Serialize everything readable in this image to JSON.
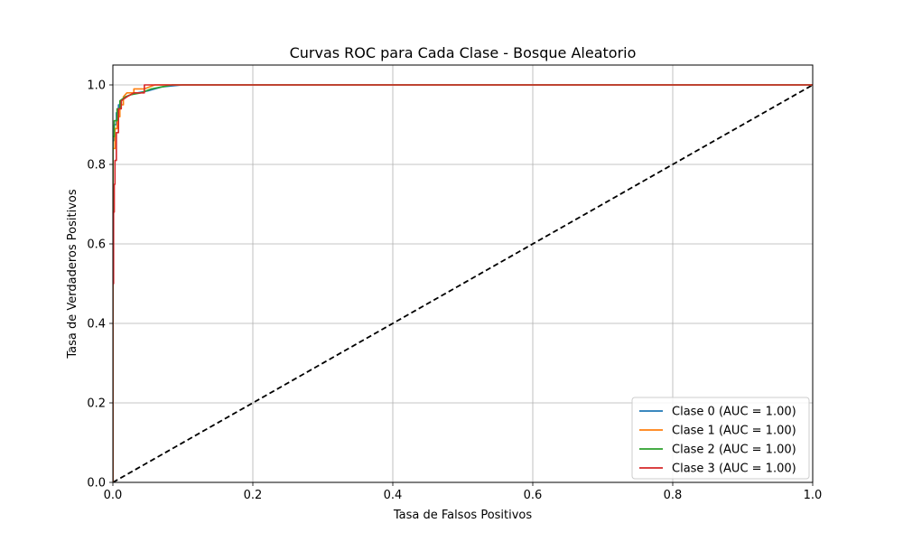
{
  "chart_data": {
    "type": "line",
    "title": "Curvas ROC para Cada Clase - Bosque Aleatorio",
    "xlabel": "Tasa de Falsos Positivos",
    "ylabel": "Tasa de Verdaderos Positivos",
    "xlim": [
      0.0,
      1.0
    ],
    "ylim": [
      0.0,
      1.05
    ],
    "xticks": [
      0.0,
      0.2,
      0.4,
      0.6,
      0.8,
      1.0
    ],
    "yticks": [
      0.0,
      0.2,
      0.4,
      0.6,
      0.8,
      1.0
    ],
    "xtick_labels": [
      "0.0",
      "0.2",
      "0.4",
      "0.6",
      "0.8",
      "1.0"
    ],
    "ytick_labels": [
      "0.0",
      "0.2",
      "0.4",
      "0.6",
      "0.8",
      "1.0"
    ],
    "grid": true,
    "legend_position": "lower-right",
    "series": [
      {
        "name": "Clase 0 (AUC = 1.00)",
        "color": "#1f77b4",
        "x": [
          0.0,
          0.0,
          0.002,
          0.002,
          0.005,
          0.005,
          0.008,
          0.008,
          0.012,
          0.012,
          0.018,
          0.025,
          0.035,
          0.05,
          0.07,
          0.1,
          0.2,
          1.0
        ],
        "y": [
          0.0,
          0.86,
          0.86,
          0.9,
          0.9,
          0.93,
          0.93,
          0.95,
          0.95,
          0.96,
          0.97,
          0.975,
          0.98,
          0.985,
          0.995,
          1.0,
          1.0,
          1.0
        ]
      },
      {
        "name": "Clase 1 (AUC = 1.00)",
        "color": "#ff7f0e",
        "x": [
          0.0,
          0.0,
          0.003,
          0.003,
          0.006,
          0.006,
          0.01,
          0.01,
          0.015,
          0.015,
          0.02,
          0.03,
          0.03,
          0.045,
          0.06,
          0.08,
          0.2,
          1.0
        ],
        "y": [
          0.0,
          0.84,
          0.84,
          0.89,
          0.89,
          0.92,
          0.92,
          0.95,
          0.95,
          0.97,
          0.98,
          0.98,
          0.99,
          0.99,
          1.0,
          1.0,
          1.0,
          1.0
        ]
      },
      {
        "name": "Clase 2 (AUC = 1.00)",
        "color": "#2ca02c",
        "x": [
          0.0,
          0.0,
          0.002,
          0.002,
          0.006,
          0.006,
          0.01,
          0.01,
          0.018,
          0.025,
          0.04,
          0.055,
          0.07,
          0.085,
          0.1,
          0.2,
          1.0
        ],
        "y": [
          0.0,
          0.87,
          0.87,
          0.91,
          0.91,
          0.94,
          0.94,
          0.96,
          0.97,
          0.975,
          0.98,
          0.99,
          0.995,
          1.0,
          1.0,
          1.0,
          1.0
        ]
      },
      {
        "name": "Clase 3 (AUC = 1.00)",
        "color": "#d62728",
        "x": [
          0.0,
          0.0,
          0.001,
          0.001,
          0.002,
          0.002,
          0.003,
          0.003,
          0.005,
          0.005,
          0.008,
          0.008,
          0.012,
          0.012,
          0.02,
          0.03,
          0.04,
          0.045,
          0.045,
          0.07,
          0.2,
          1.0
        ],
        "y": [
          0.0,
          0.5,
          0.5,
          0.68,
          0.68,
          0.75,
          0.75,
          0.81,
          0.81,
          0.88,
          0.88,
          0.94,
          0.94,
          0.96,
          0.97,
          0.98,
          0.98,
          0.98,
          1.0,
          1.0,
          1.0,
          1.0
        ]
      }
    ],
    "reference_line": {
      "name": "diagonal",
      "color": "#000000",
      "style": "dashed",
      "x": [
        0.0,
        1.0
      ],
      "y": [
        0.0,
        1.0
      ]
    }
  }
}
